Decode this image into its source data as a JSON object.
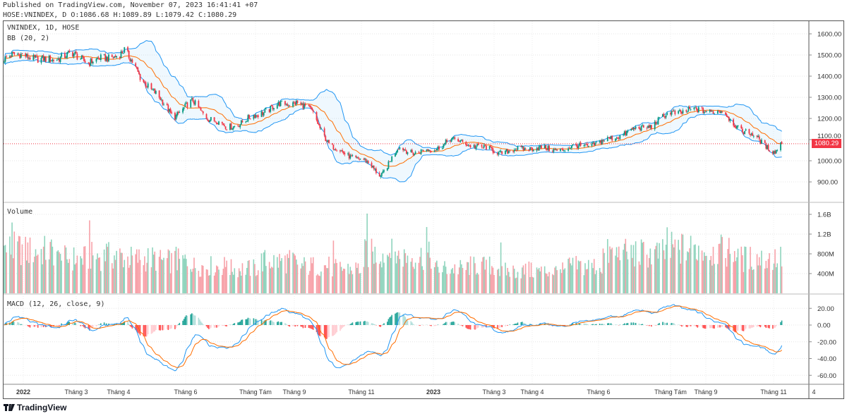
{
  "header": {
    "published": "Published on TradingView.com, November 07, 2023 16:41:41 +07",
    "ohlc": "HOSE:VNINDEX, D O:1086.68 H:1089.89 L:1079.42 C:1080.29"
  },
  "legend": {
    "symbol": "VNINDEX, 1D, HOSE",
    "bb": "BB (20, 2)",
    "volume": "Volume",
    "macd": "MACD (12, 26, close, 9)"
  },
  "colors": {
    "up": "#089981",
    "down": "#f23645",
    "vol_up": "#8fd4bd",
    "vol_down": "#f7a1a8",
    "bb_band": "#2196f3",
    "bb_basis": "#ff6d00",
    "macd": "#2196f3",
    "signal": "#ff6d00",
    "last_price": "#f23645"
  },
  "last_price_label": "1080.29",
  "branding": "TradingView",
  "chart_data": [
    {
      "type": "candlestick",
      "title": "VNINDEX, 1D, HOSE",
      "last_close": 1080.29,
      "ylim": [
        840,
        1660
      ],
      "yticks": [
        "1600.00",
        "1500.00",
        "1400.00",
        "1300.00",
        "1200.00",
        "1100.00",
        "1000.00",
        "900.00"
      ],
      "xticks": [
        "2022",
        "Tháng 3",
        "Tháng 4",
        "Tháng 6",
        "Tháng Tám",
        "Tháng 9",
        "Tháng 11",
        "2023",
        "Tháng 3",
        "Tháng 4",
        "Tháng 6",
        "Tháng Tám",
        "Tháng 9",
        "Tháng 11",
        "4"
      ],
      "grid": true,
      "close_points": [
        [
          "2021-12-15",
          1480
        ],
        [
          "2022-01-01",
          1510
        ],
        [
          "2022-01-15",
          1470
        ],
        [
          "2022-02-01",
          1490
        ],
        [
          "2022-02-15",
          1500
        ],
        [
          "2022-03-01",
          1470
        ],
        [
          "2022-03-15",
          1480
        ],
        [
          "2022-04-01",
          1520
        ],
        [
          "2022-04-15",
          1400
        ],
        [
          "2022-05-01",
          1300
        ],
        [
          "2022-05-15",
          1210
        ],
        [
          "2022-06-01",
          1280
        ],
        [
          "2022-06-15",
          1200
        ],
        [
          "2022-07-01",
          1160
        ],
        [
          "2022-07-15",
          1180
        ],
        [
          "2022-08-01",
          1230
        ],
        [
          "2022-08-15",
          1260
        ],
        [
          "2022-09-01",
          1280
        ],
        [
          "2022-09-15",
          1230
        ],
        [
          "2022-10-01",
          1070
        ],
        [
          "2022-10-15",
          1030
        ],
        [
          "2022-11-01",
          1000
        ],
        [
          "2022-11-15",
          930
        ],
        [
          "2022-12-01",
          1060
        ],
        [
          "2022-12-15",
          1040
        ],
        [
          "2023-01-01",
          1050
        ],
        [
          "2023-01-15",
          1100
        ],
        [
          "2023-02-01",
          1080
        ],
        [
          "2023-02-15",
          1060
        ],
        [
          "2023-03-01",
          1040
        ],
        [
          "2023-03-15",
          1050
        ],
        [
          "2023-04-01",
          1065
        ],
        [
          "2023-04-15",
          1050
        ],
        [
          "2023-05-01",
          1060
        ],
        [
          "2023-05-15",
          1070
        ],
        [
          "2023-06-01",
          1090
        ],
        [
          "2023-06-15",
          1120
        ],
        [
          "2023-07-01",
          1150
        ],
        [
          "2023-07-15",
          1170
        ],
        [
          "2023-08-01",
          1230
        ],
        [
          "2023-08-15",
          1235
        ],
        [
          "2023-09-01",
          1240
        ],
        [
          "2023-09-15",
          1230
        ],
        [
          "2023-10-01",
          1150
        ],
        [
          "2023-10-15",
          1110
        ],
        [
          "2023-11-01",
          1040
        ],
        [
          "2023-11-07",
          1080.29
        ]
      ],
      "indicator": "Bollinger Bands (20, 2)"
    },
    {
      "type": "bar",
      "title": "Volume",
      "yticks": [
        "1.6B",
        "1.2B",
        "800M",
        "400M"
      ],
      "ylim": [
        0,
        1850000000
      ],
      "monthly_avg_volume_millions": [
        [
          "2021-12",
          900
        ],
        [
          "2022-01",
          850
        ],
        [
          "2022-02",
          700
        ],
        [
          "2022-03",
          750
        ],
        [
          "2022-04",
          700
        ],
        [
          "2022-05",
          650
        ],
        [
          "2022-06",
          550
        ],
        [
          "2022-07",
          500
        ],
        [
          "2022-08",
          650
        ],
        [
          "2022-09",
          550
        ],
        [
          "2022-10",
          500
        ],
        [
          "2022-11",
          800
        ],
        [
          "2022-12",
          750
        ],
        [
          "2023-01",
          500
        ],
        [
          "2023-02",
          550
        ],
        [
          "2023-03",
          450
        ],
        [
          "2023-04",
          450
        ],
        [
          "2023-05",
          550
        ],
        [
          "2023-06",
          800
        ],
        [
          "2023-07",
          800
        ],
        [
          "2023-08",
          900
        ],
        [
          "2023-09",
          850
        ],
        [
          "2023-10",
          700
        ],
        [
          "2023-11",
          700
        ]
      ]
    },
    {
      "type": "line",
      "title": "MACD (12, 26, close, 9)",
      "yticks": [
        "20.00",
        "0.00",
        "-20.00",
        "-40.00",
        "-60.00"
      ],
      "ylim": [
        -70,
        30
      ],
      "series": [
        "MACD",
        "Signal",
        "Histogram"
      ]
    }
  ]
}
